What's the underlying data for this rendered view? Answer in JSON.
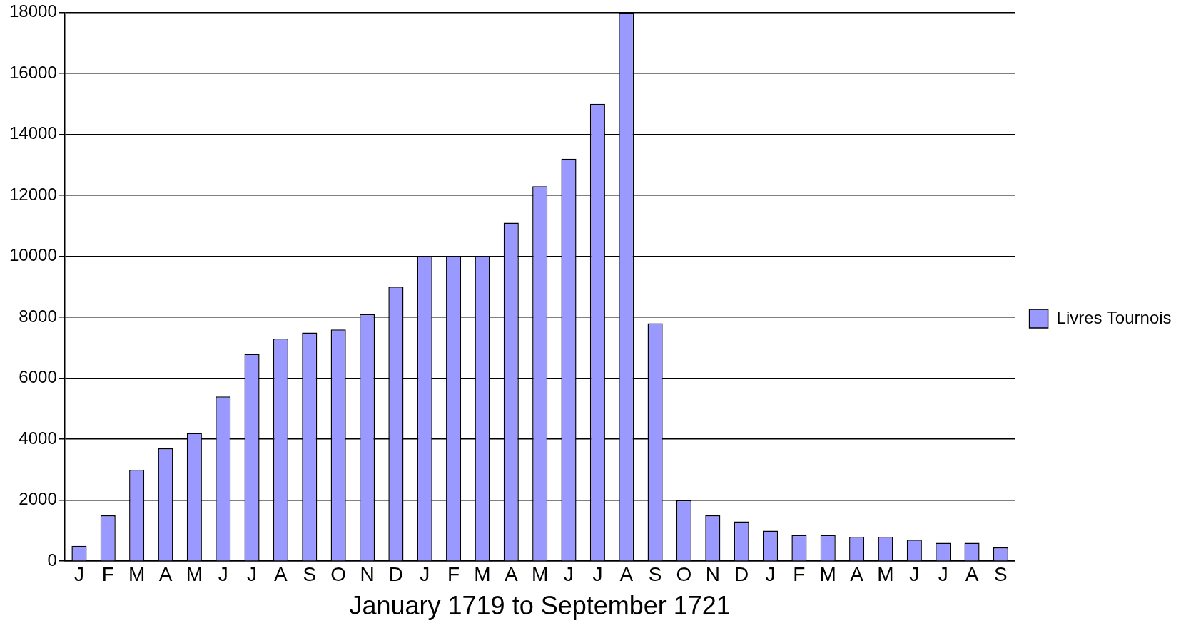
{
  "chart_data": {
    "type": "bar",
    "xlabel": "January 1719 to September 1721",
    "categories": [
      "J",
      "F",
      "M",
      "A",
      "M",
      "J",
      "J",
      "A",
      "S",
      "O",
      "N",
      "D",
      "J",
      "F",
      "M",
      "A",
      "M",
      "J",
      "J",
      "A",
      "S",
      "O",
      "N",
      "D",
      "J",
      "F",
      "M",
      "A",
      "M",
      "J",
      "J",
      "A",
      "S"
    ],
    "series": [
      {
        "name": "Livres Tournois",
        "color": "#9999ff",
        "values": [
          500,
          1500,
          3000,
          3700,
          4200,
          5400,
          6800,
          7300,
          7500,
          7600,
          8100,
          9000,
          10000,
          10000,
          10000,
          11100,
          12300,
          13200,
          15000,
          18000,
          7800,
          2000,
          1500,
          1300,
          1000,
          850,
          850,
          800,
          800,
          700,
          600,
          600,
          450
        ]
      }
    ],
    "ylim": [
      0,
      18000
    ],
    "yticks": [
      0,
      2000,
      4000,
      6000,
      8000,
      10000,
      12000,
      14000,
      16000,
      18000
    ],
    "grid": "y",
    "legend": "right"
  }
}
